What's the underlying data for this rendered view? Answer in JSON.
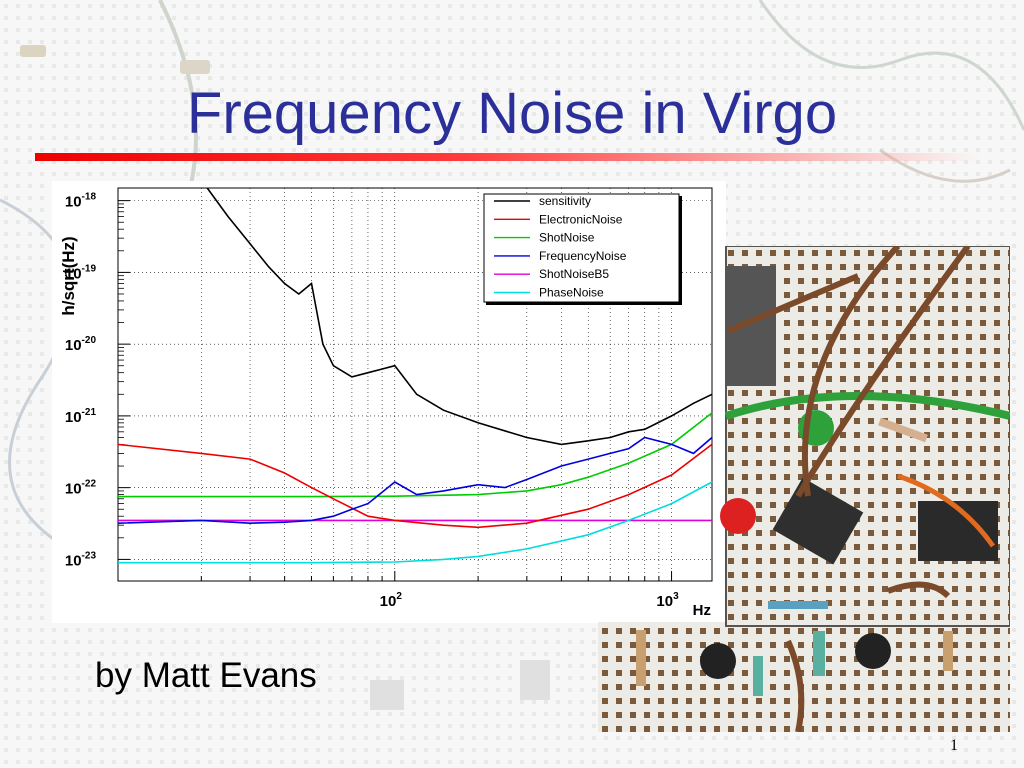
{
  "slide": {
    "title": "Frequency Noise in Virgo",
    "author": "by Matt Evans",
    "page_number": "1"
  },
  "photo": {
    "description_icon": "circuit-breadboard-photo"
  },
  "chart_data": {
    "type": "line",
    "title": "",
    "xlabel": "Hz",
    "ylabel": "h/sqrt(Hz)",
    "x_scale": "log",
    "y_scale": "log",
    "xlim": [
      10,
      1400
    ],
    "ylim": [
      5e-24,
      1.5e-18
    ],
    "x_tick_labels": [
      {
        "base": "10",
        "exp": "2",
        "value": 100
      },
      {
        "base": "10",
        "exp": "3",
        "value": 1000
      }
    ],
    "y_tick_labels": [
      {
        "base": "10",
        "exp": "-18",
        "value": 1e-18
      },
      {
        "base": "10",
        "exp": "-19",
        "value": 1e-19
      },
      {
        "base": "10",
        "exp": "-20",
        "value": 1e-20
      },
      {
        "base": "10",
        "exp": "-21",
        "value": 1e-21
      },
      {
        "base": "10",
        "exp": "-22",
        "value": 1e-22
      },
      {
        "base": "10",
        "exp": "-23",
        "value": 1e-23
      }
    ],
    "grid": true,
    "legend_position": "top-right",
    "series": [
      {
        "name": "sensitivity",
        "color": "#000000",
        "x": [
          21,
          25,
          30,
          35,
          40,
          45,
          50,
          55,
          60,
          70,
          80,
          100,
          120,
          150,
          200,
          300,
          400,
          500,
          600,
          700,
          800,
          1000,
          1200,
          1400
        ],
        "y": [
          1.5e-18,
          6e-19,
          2.5e-19,
          1.2e-19,
          7e-20,
          5e-20,
          7e-20,
          1e-20,
          5e-21,
          3.5e-21,
          4e-21,
          5e-21,
          2e-21,
          1.2e-21,
          8e-22,
          5e-22,
          4e-22,
          4.5e-22,
          5e-22,
          6e-22,
          6.5e-22,
          1e-21,
          1.5e-21,
          2e-21
        ]
      },
      {
        "name": "ElectronicNoise",
        "color": "#ee0000",
        "x": [
          10,
          20,
          30,
          40,
          50,
          60,
          80,
          100,
          150,
          200,
          300,
          500,
          700,
          1000,
          1400
        ],
        "y": [
          4e-22,
          3e-22,
          2.5e-22,
          1.6e-22,
          1e-22,
          7e-23,
          4e-23,
          3.5e-23,
          3e-23,
          2.8e-23,
          3.2e-23,
          5e-23,
          8e-23,
          1.5e-22,
          4e-22
        ]
      },
      {
        "name": "ShotNoise",
        "color": "#00cc00",
        "x": [
          10,
          50,
          100,
          200,
          300,
          400,
          500,
          700,
          1000,
          1400
        ],
        "y": [
          7.5e-23,
          7.5e-23,
          7.6e-23,
          8e-23,
          9e-23,
          1.1e-22,
          1.4e-22,
          2.2e-22,
          4e-22,
          1.1e-21
        ]
      },
      {
        "name": "FrequencyNoise",
        "color": "#0000dd",
        "x": [
          10,
          20,
          30,
          40,
          50,
          60,
          70,
          80,
          100,
          120,
          150,
          200,
          250,
          300,
          400,
          500,
          600,
          700,
          800,
          1000,
          1200,
          1400
        ],
        "y": [
          3.2e-23,
          3.5e-23,
          3.2e-23,
          3.3e-23,
          3.5e-23,
          4e-23,
          5e-23,
          6e-23,
          1.2e-22,
          8e-23,
          9e-23,
          1.1e-22,
          1e-22,
          1.3e-22,
          2e-22,
          2.5e-22,
          3e-22,
          3.5e-22,
          5e-22,
          4e-22,
          3e-22,
          5e-22
        ]
      },
      {
        "name": "ShotNoiseB5",
        "color": "#dd00dd",
        "x": [
          10,
          50,
          100,
          1000,
          1400
        ],
        "y": [
          3.5e-23,
          3.5e-23,
          3.5e-23,
          3.5e-23,
          3.5e-23
        ]
      },
      {
        "name": "PhaseNoise",
        "color": "#00dddd",
        "x": [
          10,
          50,
          100,
          150,
          200,
          300,
          500,
          700,
          1000,
          1400
        ],
        "y": [
          9e-24,
          9e-24,
          9.2e-24,
          1e-23,
          1.1e-23,
          1.4e-23,
          2.2e-23,
          3.5e-23,
          6e-23,
          1.2e-22
        ]
      }
    ]
  }
}
